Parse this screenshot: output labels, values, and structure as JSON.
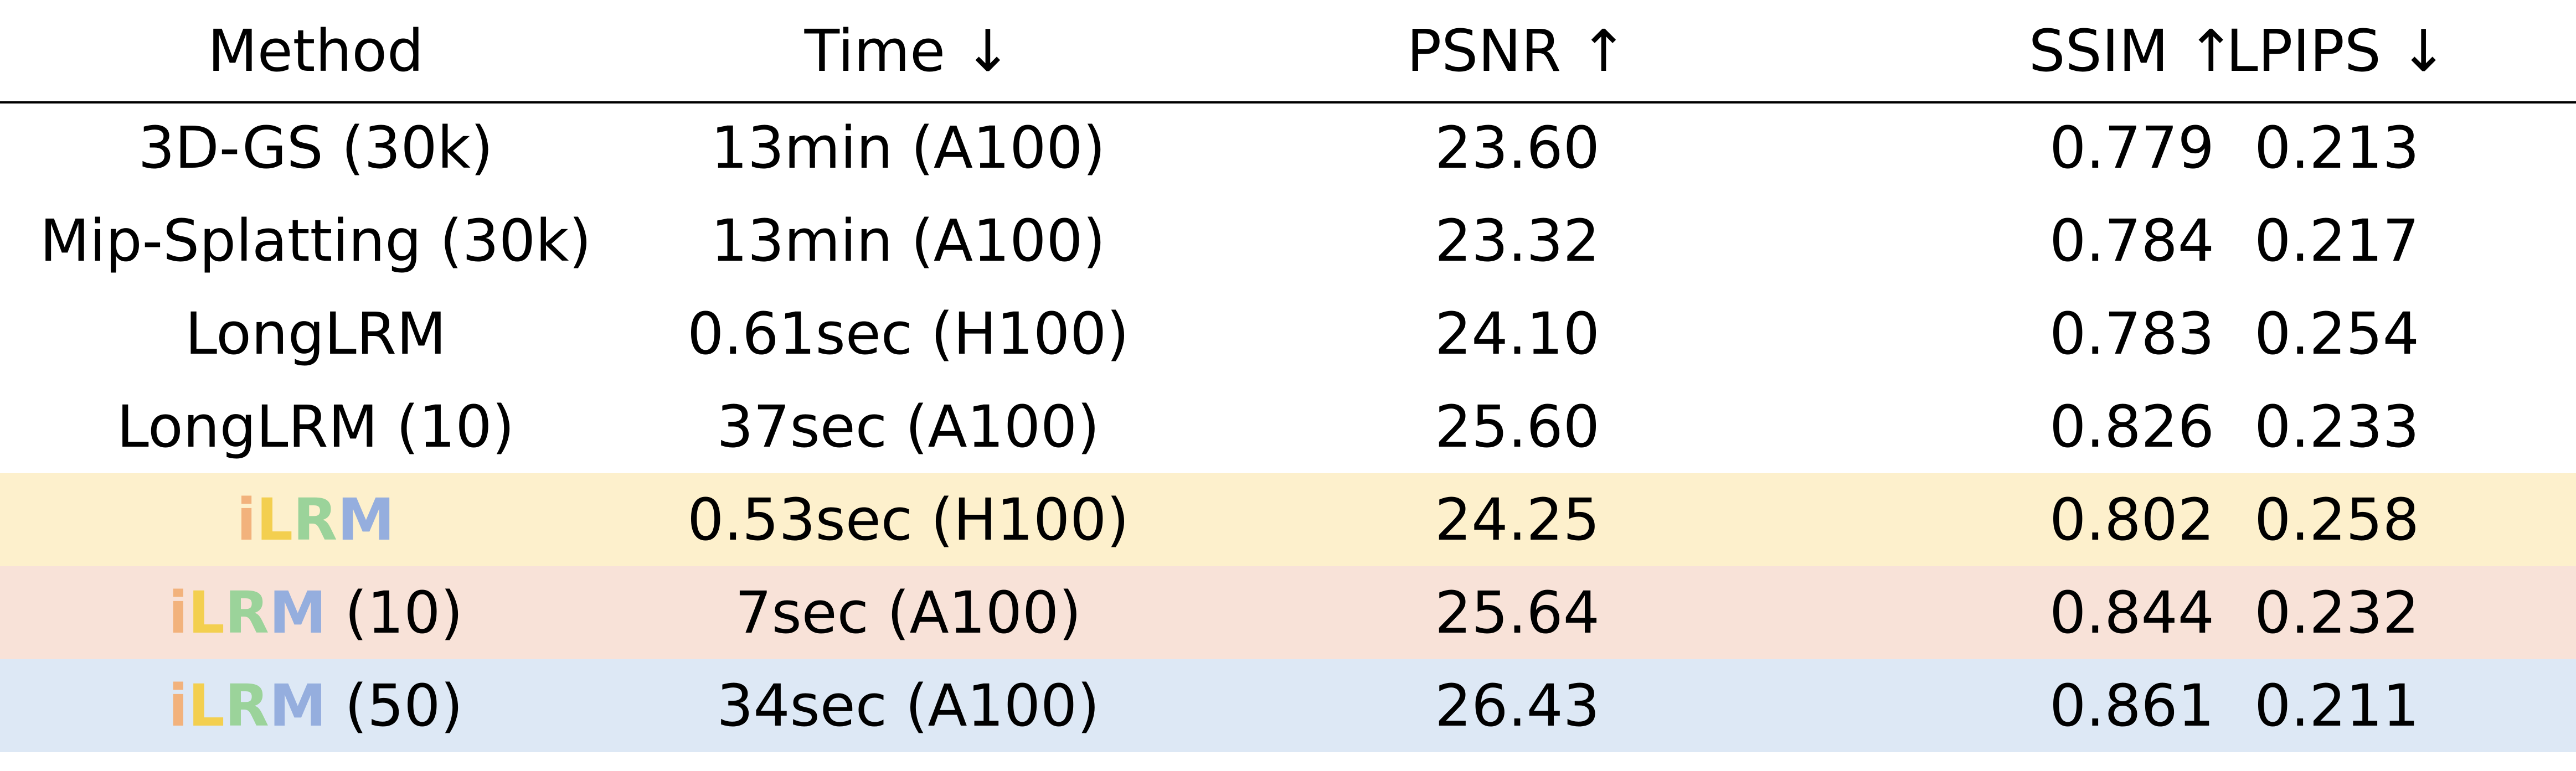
{
  "headers": {
    "method": "Method",
    "time": "Time ↓",
    "psnr": "PSNR ↑",
    "ssim": "SSIM ↑",
    "lpips": "LPIPS ↓"
  },
  "colors": {
    "ilrm_row_1_bg": "#fdf0cc",
    "ilrm_row_2_bg": "#f8e2d8",
    "ilrm_row_3_bg": "#dde8f5",
    "logo_i": "#f2b27c",
    "logo_L": "#f3cf4f",
    "logo_R": "#9bd39a",
    "logo_M": "#95aede"
  },
  "rows": [
    {
      "method": "3D-GS (30k)",
      "time": "13min (A100)",
      "psnr": "23.60",
      "ssim": "0.779",
      "lpips": "0.213"
    },
    {
      "method": "Mip-Splatting (30k)",
      "time": "13min (A100)",
      "psnr": "23.32",
      "ssim": "0.784",
      "lpips": "0.217"
    },
    {
      "method": "LongLRM",
      "time": "0.61sec (H100)",
      "psnr": "24.10",
      "ssim": "0.783",
      "lpips": "0.254"
    },
    {
      "method": "LongLRM (10)",
      "time": "37sec (A100)",
      "psnr": "25.60",
      "ssim": "0.826",
      "lpips": "0.233"
    }
  ],
  "ilrm_rows": [
    {
      "logo": [
        "i",
        "L",
        "R",
        "M"
      ],
      "suffix": "",
      "time": "0.53sec (H100)",
      "psnr": "24.25",
      "ssim": "0.802",
      "lpips": "0.258"
    },
    {
      "logo": [
        "i",
        "L",
        "R",
        "M"
      ],
      "suffix": " (10)",
      "time": "7sec (A100)",
      "psnr": "25.64",
      "ssim": "0.844",
      "lpips": "0.232"
    },
    {
      "logo": [
        "i",
        "L",
        "R",
        "M"
      ],
      "suffix": " (50)",
      "time": "34sec (A100)",
      "psnr": "26.43",
      "ssim": "0.861",
      "lpips": "0.211"
    }
  ]
}
